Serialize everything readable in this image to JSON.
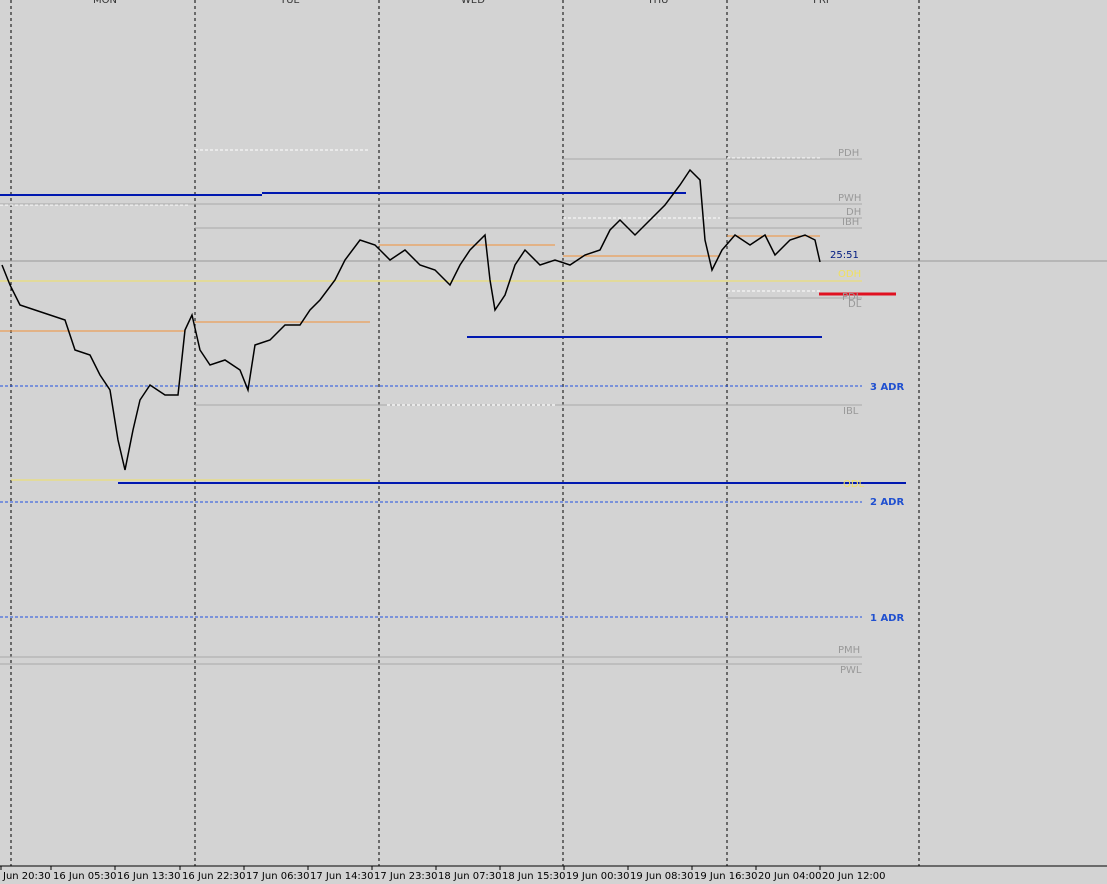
{
  "days": [
    "MON",
    "TUE",
    "WED",
    "THU",
    "FRI"
  ],
  "time_labels": [
    "Jun 20:30",
    "16 Jun 05:30",
    "16 Jun 13:30",
    "16 Jun 22:30",
    "17 Jun 06:30",
    "17 Jun 14:30",
    "17 Jun 23:30",
    "18 Jun 07:30",
    "18 Jun 15:30",
    "19 Jun 00:30",
    "19 Jun 08:30",
    "19 Jun 16:30",
    "20 Jun 04:00",
    "20 Jun 12:00"
  ],
  "level_labels": {
    "pdh": "PDH",
    "pwh": "PWH",
    "dh": "DH",
    "ibh": "IBH",
    "timer": "25:51",
    "odh": "ODH",
    "pdl": "PDL",
    "dl": "DL",
    "adr3": "3 ADR",
    "ibl": "IBL",
    "odl": "ODL",
    "adr2": "2 ADR",
    "adr1": "1 ADR",
    "pmh": "PMH",
    "pwl": "PWL"
  }
}
